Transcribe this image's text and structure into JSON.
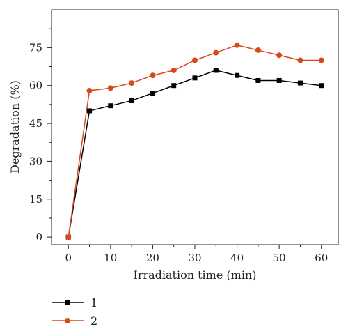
{
  "chart_data": {
    "type": "line",
    "xlabel": "Irradiation time (min)",
    "ylabel": "Degradation (%)",
    "xlim": [
      -4,
      64
    ],
    "ylim": [
      -3,
      90
    ],
    "x_ticks": [
      0,
      10,
      20,
      30,
      40,
      50,
      60
    ],
    "y_ticks": [
      0,
      15,
      30,
      45,
      60,
      75
    ],
    "grid": false,
    "legend_position": "bottom-left (below plot)",
    "x": [
      0,
      5,
      10,
      15,
      20,
      25,
      30,
      35,
      40,
      45,
      50,
      55,
      60
    ],
    "series": [
      {
        "name": "1",
        "color": "#000000",
        "marker": "square",
        "values": [
          0,
          50,
          52,
          54,
          57,
          60,
          63,
          66,
          64,
          62,
          62,
          61,
          60
        ]
      },
      {
        "name": "2",
        "color": "#d9481c",
        "marker": "circle",
        "values": [
          0,
          58,
          59,
          61,
          64,
          66,
          70,
          73,
          76,
          74,
          72,
          70,
          70
        ]
      }
    ]
  }
}
